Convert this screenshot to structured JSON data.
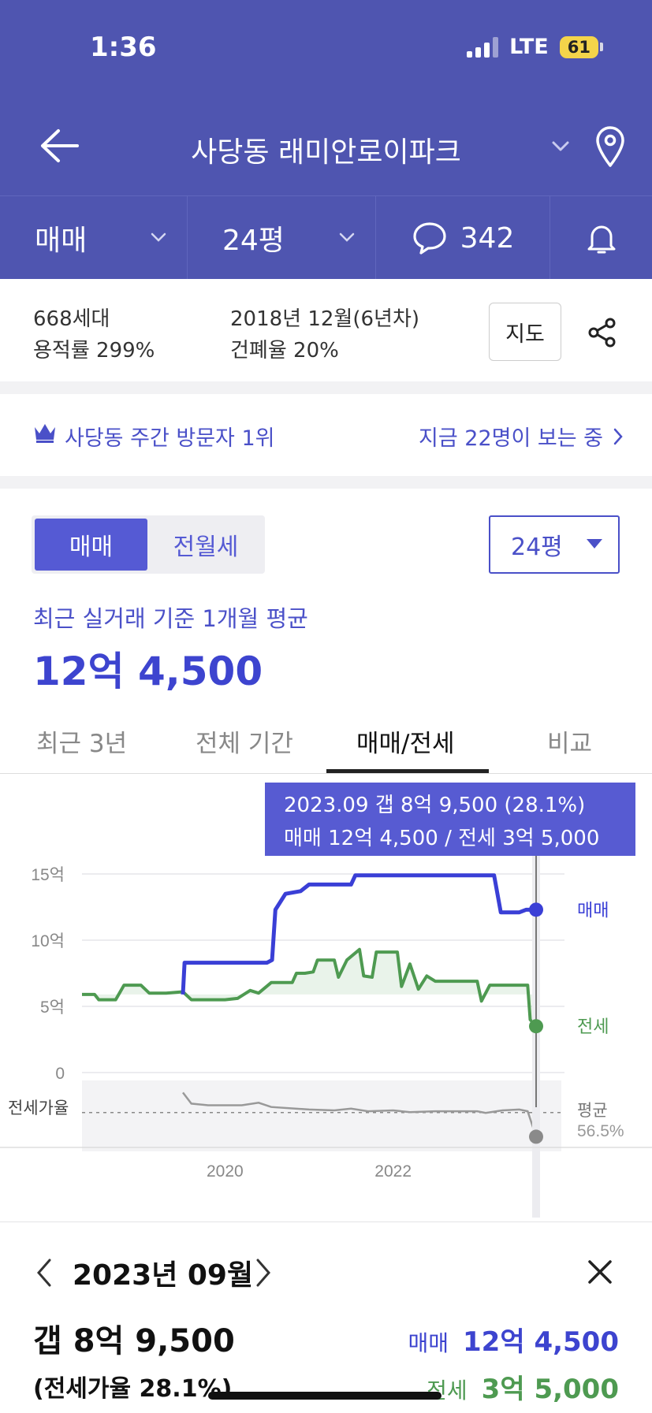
{
  "status": {
    "time": "1:36",
    "network": "LTE",
    "battery": "61"
  },
  "header": {
    "title": "사당동 래미안로이파크"
  },
  "filters": {
    "trade": "매매",
    "size": "24평",
    "comments": "342"
  },
  "info": {
    "households": "668세대",
    "far": "용적률 299%",
    "built": "2018년 12월(6년차)",
    "bcr": "건폐율 20%",
    "map_button": "지도"
  },
  "rank": {
    "text": "사당동 주간 방문자 1위",
    "viewers": "지금 22명이 보는 중"
  },
  "price_section": {
    "seg_sale": "매매",
    "seg_rent": "전월세",
    "size_select": "24평",
    "basis": "최근 실거래 기준 1개월 평균",
    "average": "12억 4,500"
  },
  "period_tabs": {
    "t1": "최근 3년",
    "t2": "전체 기간",
    "t3": "매매/전세",
    "t4": "비교",
    "active": "매매/전세"
  },
  "chart_data": {
    "type": "line",
    "y_ticks": [
      "15억",
      "10억",
      "5억",
      "0"
    ],
    "ylim": [
      0,
      15
    ],
    "x_ticks": [
      "2020",
      "2022"
    ],
    "xlim": [
      2018.3,
      2024.0
    ],
    "ratio_label": "전세가율",
    "tooltip": {
      "line1": "2023.09 갭 8억 9,500 (28.1%)",
      "line2": "매매 12억 4,500 / 전세 3억 5,000"
    },
    "avg_label": "평균",
    "avg_value": "56.5%",
    "series": [
      {
        "name": "매매",
        "color": "#3a3fd6",
        "points": [
          [
            2019.5,
            5.9
          ],
          [
            2019.52,
            8.3
          ],
          [
            2020.5,
            8.3
          ],
          [
            2020.56,
            8.5
          ],
          [
            2020.6,
            12.3
          ],
          [
            2020.72,
            13.5
          ],
          [
            2020.9,
            13.7
          ],
          [
            2021.0,
            14.2
          ],
          [
            2021.5,
            14.2
          ],
          [
            2021.55,
            14.9
          ],
          [
            2023.2,
            14.9
          ],
          [
            2023.28,
            12.1
          ],
          [
            2023.5,
            12.1
          ],
          [
            2023.58,
            12.3
          ],
          [
            2023.7,
            12.3
          ]
        ]
      },
      {
        "name": "전세",
        "color": "#4e9a51",
        "points": [
          [
            2018.3,
            5.9
          ],
          [
            2018.45,
            5.9
          ],
          [
            2018.5,
            5.5
          ],
          [
            2018.7,
            5.5
          ],
          [
            2018.8,
            6.6
          ],
          [
            2019.0,
            6.6
          ],
          [
            2019.1,
            6.0
          ],
          [
            2019.3,
            6.0
          ],
          [
            2019.5,
            6.1
          ],
          [
            2019.6,
            5.5
          ],
          [
            2020.0,
            5.5
          ],
          [
            2020.15,
            5.6
          ],
          [
            2020.3,
            6.2
          ],
          [
            2020.4,
            6.0
          ],
          [
            2020.55,
            6.8
          ],
          [
            2020.8,
            6.8
          ],
          [
            2020.85,
            7.5
          ],
          [
            2020.95,
            7.5
          ],
          [
            2021.05,
            7.6
          ],
          [
            2021.1,
            8.5
          ],
          [
            2021.3,
            8.5
          ],
          [
            2021.35,
            7.2
          ],
          [
            2021.45,
            8.5
          ],
          [
            2021.6,
            9.3
          ],
          [
            2021.65,
            7.3
          ],
          [
            2021.75,
            7.2
          ],
          [
            2021.8,
            9.1
          ],
          [
            2022.05,
            9.1
          ],
          [
            2022.1,
            6.5
          ],
          [
            2022.2,
            8.2
          ],
          [
            2022.3,
            6.3
          ],
          [
            2022.4,
            7.3
          ],
          [
            2022.5,
            6.9
          ],
          [
            2023.0,
            6.9
          ],
          [
            2023.05,
            5.4
          ],
          [
            2023.15,
            6.6
          ],
          [
            2023.5,
            6.6
          ],
          [
            2023.6,
            6.6
          ],
          [
            2023.63,
            4.0
          ],
          [
            2023.7,
            3.5
          ]
        ]
      },
      {
        "name": "전세가율",
        "points": [
          [
            2019.5,
            80
          ],
          [
            2019.6,
            67
          ],
          [
            2019.8,
            65
          ],
          [
            2020.2,
            65
          ],
          [
            2020.4,
            68
          ],
          [
            2020.55,
            63
          ],
          [
            2021.0,
            60
          ],
          [
            2021.3,
            59
          ],
          [
            2021.5,
            61
          ],
          [
            2021.7,
            58
          ],
          [
            2022.0,
            59
          ],
          [
            2022.2,
            57
          ],
          [
            2022.5,
            58
          ],
          [
            2023.0,
            58
          ],
          [
            2023.1,
            56
          ],
          [
            2023.3,
            59
          ],
          [
            2023.5,
            60
          ],
          [
            2023.6,
            58
          ],
          [
            2023.7,
            28
          ]
        ]
      }
    ]
  },
  "detail": {
    "month": "2023년 09월",
    "gap": "갭 8억 9,500",
    "ratio": "(전세가율 28.1%)",
    "sale_label": "매매",
    "sale_value": "12억 4,500",
    "rent_label": "전세",
    "rent_value": "3억 5,000"
  }
}
